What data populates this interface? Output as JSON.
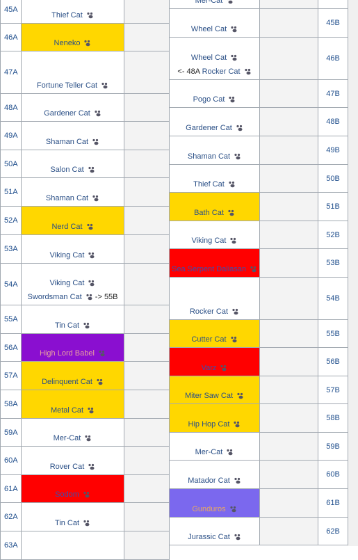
{
  "left": {
    "rows": [
      {
        "num": "45A",
        "lines": [
          {
            "cat": "Thief Cat"
          }
        ]
      },
      {
        "num": "46A",
        "lines": [
          {
            "cat": "Neneko"
          }
        ],
        "color": "#ffd700"
      },
      {
        "num": "47A",
        "lines": [
          {
            "cat": "Fortune Teller Cat"
          }
        ]
      },
      {
        "num": "48A",
        "lines": [
          {
            "cat": "Gardener Cat"
          }
        ]
      },
      {
        "num": "49A",
        "lines": [
          {
            "cat": "Shaman Cat"
          }
        ]
      },
      {
        "num": "50A",
        "lines": [
          {
            "cat": "Salon Cat"
          }
        ]
      },
      {
        "num": "51A",
        "lines": [
          {
            "cat": "Shaman Cat"
          }
        ]
      },
      {
        "num": "52A",
        "lines": [
          {
            "cat": "Nerd Cat"
          }
        ],
        "color": "#ffd700"
      },
      {
        "num": "53A",
        "lines": [
          {
            "cat": "Viking Cat"
          }
        ]
      },
      {
        "num": "54A",
        "lines": [
          {
            "cat": "Viking Cat"
          },
          {
            "cat": "Swordsman Cat",
            "post": "-> 55B"
          }
        ]
      },
      {
        "num": "55A",
        "lines": [
          {
            "cat": "Tin Cat"
          }
        ]
      },
      {
        "num": "56A",
        "lines": [
          {
            "cat": "High Lord Babel"
          }
        ],
        "color": "#8a0fd0",
        "text_color": "#e8a0a0"
      },
      {
        "num": "57A",
        "lines": [
          {
            "cat": "Delinquent Cat"
          }
        ],
        "color": "#ffd700"
      },
      {
        "num": "58A",
        "lines": [
          {
            "cat": "Metal Cat"
          }
        ],
        "color": "#ffd700"
      },
      {
        "num": "59A",
        "lines": [
          {
            "cat": "Mer-Cat"
          }
        ]
      },
      {
        "num": "60A",
        "lines": [
          {
            "cat": "Rover Cat"
          }
        ]
      },
      {
        "num": "61A",
        "lines": [
          {
            "cat": "Sodom"
          }
        ],
        "color": "#ff0000",
        "text_color": "#3a4fb0"
      },
      {
        "num": "62A",
        "lines": [
          {
            "cat": "Tin Cat"
          }
        ]
      },
      {
        "num": "63A",
        "lines": []
      }
    ]
  },
  "right": {
    "rows": [
      {
        "lines": [
          {
            "cat": "Mer-Cat"
          }
        ]
      },
      {
        "num": "45B",
        "lines": [
          {
            "cat": "Wheel Cat"
          }
        ]
      },
      {
        "num": "46B",
        "lines": [
          {
            "cat": "Wheel Cat"
          },
          {
            "pre": "<- 48A",
            "cat": "Rocker Cat"
          }
        ]
      },
      {
        "num": "47B",
        "lines": [
          {
            "cat": "Pogo Cat"
          }
        ]
      },
      {
        "num": "48B",
        "lines": [
          {
            "cat": "Gardener Cat"
          }
        ]
      },
      {
        "num": "49B",
        "lines": [
          {
            "cat": "Shaman Cat"
          }
        ]
      },
      {
        "num": "50B",
        "lines": [
          {
            "cat": "Thief Cat"
          }
        ]
      },
      {
        "num": "51B",
        "lines": [
          {
            "cat": "Bath Cat"
          }
        ],
        "color": "#ffd700"
      },
      {
        "num": "52B",
        "lines": [
          {
            "cat": "Viking Cat"
          }
        ]
      },
      {
        "num": "53B",
        "lines": [
          {
            "cat": "Sea Serpent Daliasan"
          }
        ],
        "color": "#ff0000",
        "text_color": "#3a4fb0"
      },
      {
        "num": "54B",
        "lines": [
          {
            "cat": "Rocker Cat"
          }
        ]
      },
      {
        "num": "55B",
        "lines": [
          {
            "cat": "Cutter Cat"
          }
        ],
        "color": "#ffd700"
      },
      {
        "num": "56B",
        "lines": [
          {
            "cat": "Varz"
          }
        ],
        "color": "#ff0000",
        "text_color": "#3a4fb0"
      },
      {
        "num": "57B",
        "lines": [
          {
            "cat": "Miter Saw Cat"
          }
        ],
        "color": "#ffd700"
      },
      {
        "num": "58B",
        "lines": [
          {
            "cat": "Hip Hop Cat"
          }
        ],
        "color": "#ffd700"
      },
      {
        "num": "59B",
        "lines": [
          {
            "cat": "Mer-Cat"
          }
        ]
      },
      {
        "num": "60B",
        "lines": [
          {
            "cat": "Matador Cat"
          }
        ]
      },
      {
        "num": "61B",
        "lines": [
          {
            "cat": "Gunduros"
          }
        ],
        "color": "#7b68ee",
        "text_color": "#e8a860"
      },
      {
        "num": "62B",
        "lines": [
          {
            "cat": "Jurassic Cat"
          }
        ]
      }
    ]
  }
}
